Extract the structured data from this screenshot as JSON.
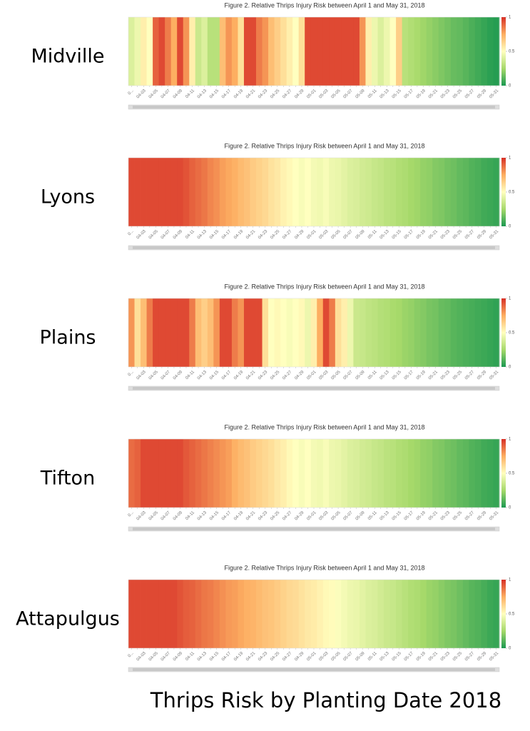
{
  "title": "Thrips Risk by Planting Date 2018",
  "chart_data": [
    {
      "type": "heatmap",
      "title": "Figure 2. Relative Thrips Injury Risk between April 1 and May 31, 2018",
      "label": "Midville",
      "categories": [
        "0...",
        null,
        "04-03",
        null,
        "04-05",
        null,
        "04-07",
        null,
        "04-09",
        null,
        "04-11",
        null,
        "04-13",
        null,
        "04-15",
        null,
        "04-17",
        null,
        "04-19",
        null,
        "04-21",
        null,
        "04-23",
        null,
        "04-25",
        null,
        "04-27",
        null,
        "04-29",
        null,
        "05-01",
        null,
        "05-03",
        null,
        "05-05",
        null,
        "05-07",
        null,
        "05-09",
        null,
        "05-11",
        null,
        "05-13",
        null,
        "05-15",
        null,
        "05-17",
        null,
        "05-19",
        null,
        "05-21",
        null,
        "05-23",
        null,
        "05-25",
        null,
        "05-27",
        null,
        "05-29",
        null,
        "05-31"
      ],
      "values": [
        0.4,
        0.45,
        0.55,
        0.5,
        0.9,
        0.95,
        0.85,
        0.75,
        0.95,
        0.8,
        0.55,
        0.35,
        0.4,
        0.3,
        0.3,
        0.7,
        0.8,
        0.75,
        0.6,
        0.95,
        0.95,
        0.85,
        0.8,
        0.7,
        0.65,
        0.6,
        0.55,
        0.5,
        0.6,
        0.95,
        0.95,
        0.95,
        0.95,
        0.95,
        0.95,
        0.95,
        0.95,
        0.95,
        0.8,
        0.55,
        0.45,
        0.4,
        0.45,
        0.5,
        0.65,
        0.3,
        0.28,
        0.26,
        0.24,
        0.22,
        0.2,
        0.18,
        0.16,
        0.14,
        0.13,
        0.11,
        0.09,
        0.07,
        0.05,
        0.03,
        0.02
      ],
      "zlim": [
        0,
        1
      ],
      "zticks": [
        0,
        0.5,
        1
      ],
      "colorscale": [
        "#1a9850",
        "#a6d96a",
        "#ffffbf",
        "#fdae61",
        "#d73027"
      ]
    },
    {
      "type": "heatmap",
      "title": "Figure 2. Relative Thrips Injury Risk between April 1 and May 31, 2018",
      "label": "Lyons",
      "categories": [
        "0...",
        null,
        "04-03",
        null,
        "04-05",
        null,
        "04-07",
        null,
        "04-09",
        null,
        "04-11",
        null,
        "04-13",
        null,
        "04-15",
        null,
        "04-17",
        null,
        "04-19",
        null,
        "04-21",
        null,
        "04-23",
        null,
        "04-25",
        null,
        "04-27",
        null,
        "04-29",
        null,
        "05-01",
        null,
        "05-03",
        null,
        "05-05",
        null,
        "05-07",
        null,
        "05-09",
        null,
        "05-11",
        null,
        "05-13",
        null,
        "05-15",
        null,
        "05-17",
        null,
        "05-19",
        null,
        "05-21",
        null,
        "05-23",
        null,
        "05-25",
        null,
        "05-27",
        null,
        "05-29",
        null,
        "05-31"
      ],
      "values": [
        0.95,
        0.95,
        0.95,
        0.95,
        0.95,
        0.95,
        0.95,
        0.95,
        0.95,
        0.93,
        0.9,
        0.88,
        0.86,
        0.83,
        0.81,
        0.78,
        0.76,
        0.74,
        0.71,
        0.69,
        0.66,
        0.64,
        0.62,
        0.59,
        0.57,
        0.54,
        0.52,
        0.5,
        0.48,
        0.5,
        0.47,
        0.46,
        0.48,
        0.45,
        0.44,
        0.42,
        0.4,
        0.39,
        0.37,
        0.36,
        0.34,
        0.33,
        0.31,
        0.3,
        0.28,
        0.27,
        0.25,
        0.24,
        0.22,
        0.21,
        0.19,
        0.18,
        0.16,
        0.15,
        0.13,
        0.12,
        0.1,
        0.09,
        0.07,
        0.06,
        0.05
      ],
      "zlim": [
        0,
        1
      ],
      "zticks": [
        0,
        0.5,
        1
      ],
      "colorscale": [
        "#1a9850",
        "#a6d96a",
        "#ffffbf",
        "#fdae61",
        "#d73027"
      ]
    },
    {
      "type": "heatmap",
      "title": "Figure 2. Relative Thrips Injury Risk between April 1 and May 31, 2018",
      "label": "Plains",
      "categories": [
        "0...",
        null,
        "04-03",
        null,
        "04-05",
        null,
        "04-07",
        null,
        "04-09",
        null,
        "04-11",
        null,
        "04-13",
        null,
        "04-15",
        null,
        "04-17",
        null,
        "04-19",
        null,
        "04-21",
        null,
        "04-23",
        null,
        "04-25",
        null,
        "04-27",
        null,
        "04-29",
        null,
        "05-01",
        null,
        "05-03",
        null,
        "05-05",
        null,
        "05-07",
        null,
        "05-09",
        null,
        "05-11",
        null,
        "05-13",
        null,
        "05-15",
        null,
        "05-17",
        null,
        "05-19",
        null,
        "05-21",
        null,
        "05-23",
        null,
        "05-25",
        null,
        "05-27",
        null,
        "05-29",
        null,
        "05-31"
      ],
      "values": [
        0.8,
        0.6,
        0.7,
        0.85,
        0.95,
        0.95,
        0.95,
        0.95,
        0.95,
        0.95,
        0.85,
        0.7,
        0.65,
        0.7,
        0.8,
        0.95,
        0.95,
        0.85,
        0.8,
        0.95,
        0.95,
        0.95,
        0.6,
        0.5,
        0.52,
        0.5,
        0.48,
        0.5,
        0.52,
        0.45,
        0.55,
        0.75,
        0.95,
        0.85,
        0.6,
        0.55,
        0.45,
        0.35,
        0.34,
        0.32,
        0.31,
        0.29,
        0.28,
        0.26,
        0.25,
        0.23,
        0.22,
        0.2,
        0.19,
        0.17,
        0.16,
        0.14,
        0.13,
        0.11,
        0.1,
        0.09,
        0.08,
        0.07,
        0.06,
        0.05,
        0.04
      ],
      "zlim": [
        0,
        1
      ],
      "zticks": [
        0,
        0.5,
        1
      ],
      "colorscale": [
        "#1a9850",
        "#a6d96a",
        "#ffffbf",
        "#fdae61",
        "#d73027"
      ]
    },
    {
      "type": "heatmap",
      "title": "Figure 2. Relative Thrips Injury Risk between April 1 and May 31, 2018",
      "label": "Tifton",
      "categories": [
        "0...",
        null,
        "04-03",
        null,
        "04-05",
        null,
        "04-07",
        null,
        "04-09",
        null,
        "04-11",
        null,
        "04-13",
        null,
        "04-15",
        null,
        "04-17",
        null,
        "04-19",
        null,
        "04-21",
        null,
        "04-23",
        null,
        "04-25",
        null,
        "04-27",
        null,
        "04-29",
        null,
        "05-01",
        null,
        "05-03",
        null,
        "05-05",
        null,
        "05-07",
        null,
        "05-09",
        null,
        "05-11",
        null,
        "05-13",
        null,
        "05-15",
        null,
        "05-17",
        null,
        "05-19",
        null,
        "05-21",
        null,
        "05-23",
        null,
        "05-25",
        null,
        "05-27",
        null,
        "05-29",
        null,
        "05-31"
      ],
      "values": [
        0.88,
        0.9,
        0.95,
        0.95,
        0.95,
        0.95,
        0.95,
        0.95,
        0.95,
        0.92,
        0.9,
        0.88,
        0.86,
        0.84,
        0.82,
        0.8,
        0.78,
        0.74,
        0.71,
        0.69,
        0.66,
        0.64,
        0.62,
        0.6,
        0.57,
        0.55,
        0.52,
        0.5,
        0.48,
        0.5,
        0.47,
        0.46,
        0.48,
        0.45,
        0.44,
        0.42,
        0.4,
        0.39,
        0.37,
        0.36,
        0.34,
        0.33,
        0.31,
        0.3,
        0.28,
        0.27,
        0.25,
        0.24,
        0.22,
        0.21,
        0.19,
        0.18,
        0.16,
        0.15,
        0.13,
        0.12,
        0.1,
        0.09,
        0.07,
        0.06,
        0.05
      ],
      "zlim": [
        0,
        1
      ],
      "zticks": [
        0,
        0.5,
        1
      ],
      "colorscale": [
        "#1a9850",
        "#a6d96a",
        "#ffffbf",
        "#fdae61",
        "#d73027"
      ]
    },
    {
      "type": "heatmap",
      "title": "Figure 2. Relative Thrips Injury Risk between April 1 and May 31, 2018",
      "label": "Attapulgus",
      "categories": [
        "0...",
        null,
        "04-03",
        null,
        "04-05",
        null,
        "04-07",
        null,
        "04-09",
        null,
        "04-11",
        null,
        "04-13",
        null,
        "04-15",
        null,
        "04-17",
        null,
        "04-19",
        null,
        "04-21",
        null,
        "04-23",
        null,
        "04-25",
        null,
        "04-27",
        null,
        "04-29",
        null,
        "05-01",
        null,
        "05-03",
        null,
        "05-05",
        null,
        "05-07",
        null,
        "05-09",
        null,
        "05-11",
        null,
        "05-13",
        null,
        "05-15",
        null,
        "05-17",
        null,
        "05-19",
        null,
        "05-21",
        null,
        "05-23",
        null,
        "05-25",
        null,
        "05-27",
        null,
        "05-29",
        null,
        "05-31"
      ],
      "values": [
        0.95,
        0.95,
        0.95,
        0.95,
        0.95,
        0.95,
        0.95,
        0.95,
        0.93,
        0.91,
        0.9,
        0.88,
        0.86,
        0.85,
        0.83,
        0.81,
        0.79,
        0.78,
        0.76,
        0.74,
        0.73,
        0.71,
        0.69,
        0.68,
        0.66,
        0.64,
        0.62,
        0.61,
        0.59,
        0.57,
        0.56,
        0.54,
        0.52,
        0.51,
        0.49,
        0.47,
        0.45,
        0.44,
        0.42,
        0.4,
        0.39,
        0.37,
        0.35,
        0.34,
        0.32,
        0.3,
        0.28,
        0.27,
        0.25,
        0.23,
        0.22,
        0.2,
        0.18,
        0.17,
        0.15,
        0.13,
        0.11,
        0.1,
        0.08,
        0.06,
        0.05
      ],
      "zlim": [
        0,
        1
      ],
      "zticks": [
        0,
        0.5,
        1
      ],
      "colorscale": [
        "#1a9850",
        "#a6d96a",
        "#ffffbf",
        "#fdae61",
        "#d73027"
      ]
    }
  ]
}
